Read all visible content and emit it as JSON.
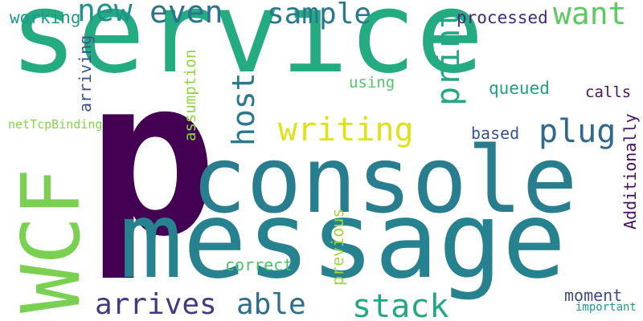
{
  "words": {
    "service": {
      "text": "service",
      "color": "#25AB82"
    },
    "p": {
      "text": "p",
      "color": "#440154"
    },
    "console": {
      "text": "console",
      "color": "#287D8E"
    },
    "message": {
      "text": "message",
      "color": "#26828E"
    },
    "wcf": {
      "text": "WCF",
      "color": "#7AD151"
    },
    "writing": {
      "text": "writing",
      "color": "#DDE318"
    },
    "host": {
      "text": "host",
      "color": "#2A788E"
    },
    "plug": {
      "text": "plug",
      "color": "#31688E"
    },
    "print": {
      "text": "print",
      "color": "#22A884"
    },
    "new": {
      "text": "new",
      "color": "#21918C"
    },
    "even": {
      "text": "even",
      "color": "#2C728E"
    },
    "sample": {
      "text": "sample",
      "color": "#2A788E"
    },
    "want": {
      "text": "want",
      "color": "#5EC962"
    },
    "arrives": {
      "text": "arrives",
      "color": "#443983"
    },
    "able": {
      "text": "able",
      "color": "#2E6E8E"
    },
    "stack": {
      "text": "stack",
      "color": "#22A884"
    },
    "working": {
      "text": "working",
      "color": "#1F988B"
    },
    "arriving": {
      "text": "arriving",
      "color": "#3B528B"
    },
    "netTcpBinding": {
      "text": "netTcpBinding",
      "color": "#84D44B"
    },
    "assumption": {
      "text": "assumption",
      "color": "#8FD744"
    },
    "using": {
      "text": "using",
      "color": "#52C569"
    },
    "queued": {
      "text": "queued",
      "color": "#1F9E89"
    },
    "processed": {
      "text": "processed",
      "color": "#482878"
    },
    "calls": {
      "text": "calls",
      "color": "#481467"
    },
    "Additionally": {
      "text": "Additionally",
      "color": "#471164"
    },
    "based": {
      "text": "based",
      "color": "#3B528B"
    },
    "previous": {
      "text": "previous",
      "color": "#A0DA39"
    },
    "correct": {
      "text": "correct",
      "color": "#4AC16D"
    },
    "moment": {
      "text": "moment",
      "color": "#3E4A89"
    },
    "important": {
      "text": "important",
      "color": "#1F9A8A"
    }
  }
}
